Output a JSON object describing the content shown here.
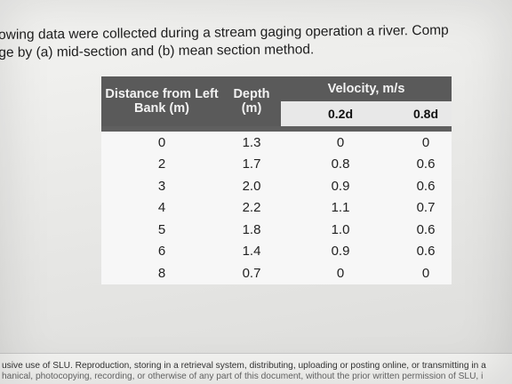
{
  "intro": {
    "line1": "owing data were collected during a stream gaging operation a river. Comp",
    "line2": "ge by (a) mid-section and (b) mean section method."
  },
  "table": {
    "headers": {
      "distance": "Distance from Left Bank (m)",
      "depth": "Depth (m)",
      "velocity": "Velocity, m/s",
      "v02": "0.2d",
      "v08": "0.8d"
    },
    "rows": [
      {
        "distance": "0",
        "depth": "1.3",
        "v02": "0",
        "v08": "0"
      },
      {
        "distance": "2",
        "depth": "1.7",
        "v02": "0.8",
        "v08": "0.6"
      },
      {
        "distance": "3",
        "depth": "2.0",
        "v02": "0.9",
        "v08": "0.6"
      },
      {
        "distance": "4",
        "depth": "2.2",
        "v02": "1.1",
        "v08": "0.7"
      },
      {
        "distance": "5",
        "depth": "1.8",
        "v02": "1.0",
        "v08": "0.6"
      },
      {
        "distance": "6",
        "depth": "1.4",
        "v02": "0.9",
        "v08": "0.6"
      },
      {
        "distance": "8",
        "depth": "0.7",
        "v02": "0",
        "v08": "0"
      }
    ]
  },
  "footer": {
    "line1": "usive use of SLU. Reproduction, storing in a retrieval system, distributing, uploading or posting online, or transmitting in a",
    "line2": "hanical, photocopying, recording, or otherwise of any part of this document, without the prior written permission of SLU, i"
  }
}
